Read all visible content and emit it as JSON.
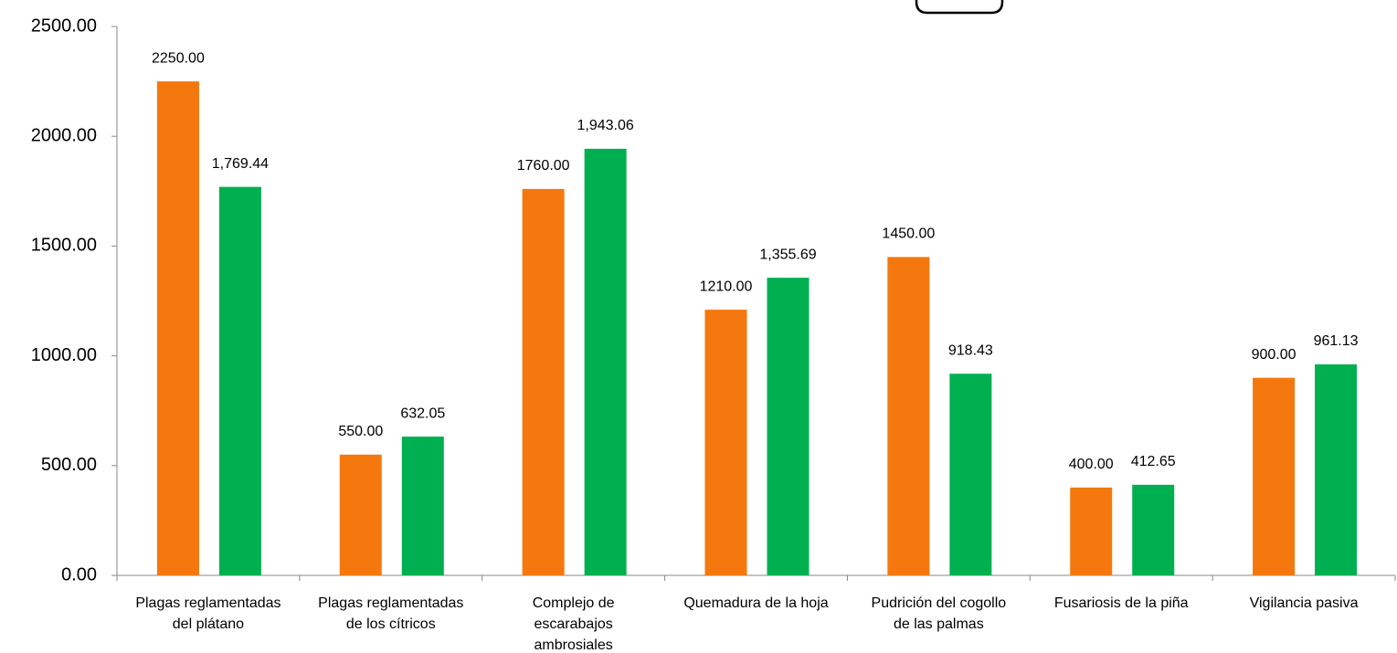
{
  "chart_data": {
    "type": "bar",
    "categories": [
      "Plagas reglamentadas\ndel plátano",
      "Plagas reglamentadas\nde los cítricos",
      "Complejo de\nescarabajos\nambrosiales",
      "Quemadura de la hoja",
      "Pudrición del cogollo\nde las palmas",
      "Fusariosis de la piña",
      "Vigilancia pasiva"
    ],
    "series": [
      {
        "color": "#f4780e",
        "values": [
          2250,
          550,
          1760,
          1210,
          1450,
          400,
          900
        ],
        "value_labels": [
          "2250.00",
          "550.00",
          "1760.00",
          "1210.00",
          "1450.00",
          "400.00",
          "900.00"
        ]
      },
      {
        "color": "#00b050",
        "values": [
          1769.44,
          632.05,
          1943.06,
          1355.69,
          918.43,
          412.65,
          961.13
        ],
        "value_labels": [
          "1,769.44",
          "632.05",
          "1,943.06",
          "1,355.69",
          "918.43",
          "412.65",
          "961.13"
        ]
      }
    ],
    "ylim": [
      0,
      2500
    ],
    "yticks": [
      {
        "value": 0,
        "label": "0.00"
      },
      {
        "value": 500,
        "label": "500.00"
      },
      {
        "value": 1000,
        "label": "1000.00"
      },
      {
        "value": 1500,
        "label": "1500.00"
      },
      {
        "value": 2000,
        "label": "2000.00"
      },
      {
        "value": 2500,
        "label": "2500.00"
      }
    ],
    "grid": false
  }
}
